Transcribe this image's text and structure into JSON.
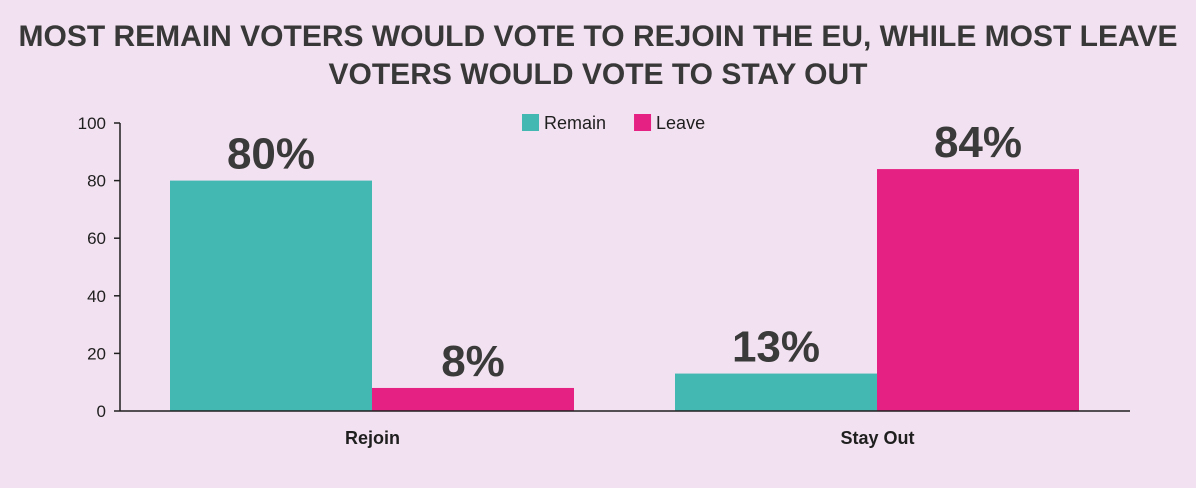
{
  "chart_data": {
    "type": "bar",
    "title_lines": [
      "MOST REMAIN VOTERS WOULD VOTE TO REJOIN THE EU, WHILE MOST LEAVE",
      "VOTERS WOULD VOTE TO STAY OUT"
    ],
    "categories": [
      "Rejoin",
      "Stay Out"
    ],
    "series": [
      {
        "name": "Remain",
        "color": "#43b8b2",
        "values": [
          80,
          13
        ],
        "labels": [
          "80%",
          "13%"
        ]
      },
      {
        "name": "Leave",
        "color": "#e52183",
        "values": [
          8,
          84
        ],
        "labels": [
          "8%",
          "84%"
        ]
      }
    ],
    "ylim": [
      0,
      100
    ],
    "yticks": [
      0,
      20,
      40,
      60,
      80,
      100
    ],
    "grid": false,
    "legend_position": "top-center"
  }
}
